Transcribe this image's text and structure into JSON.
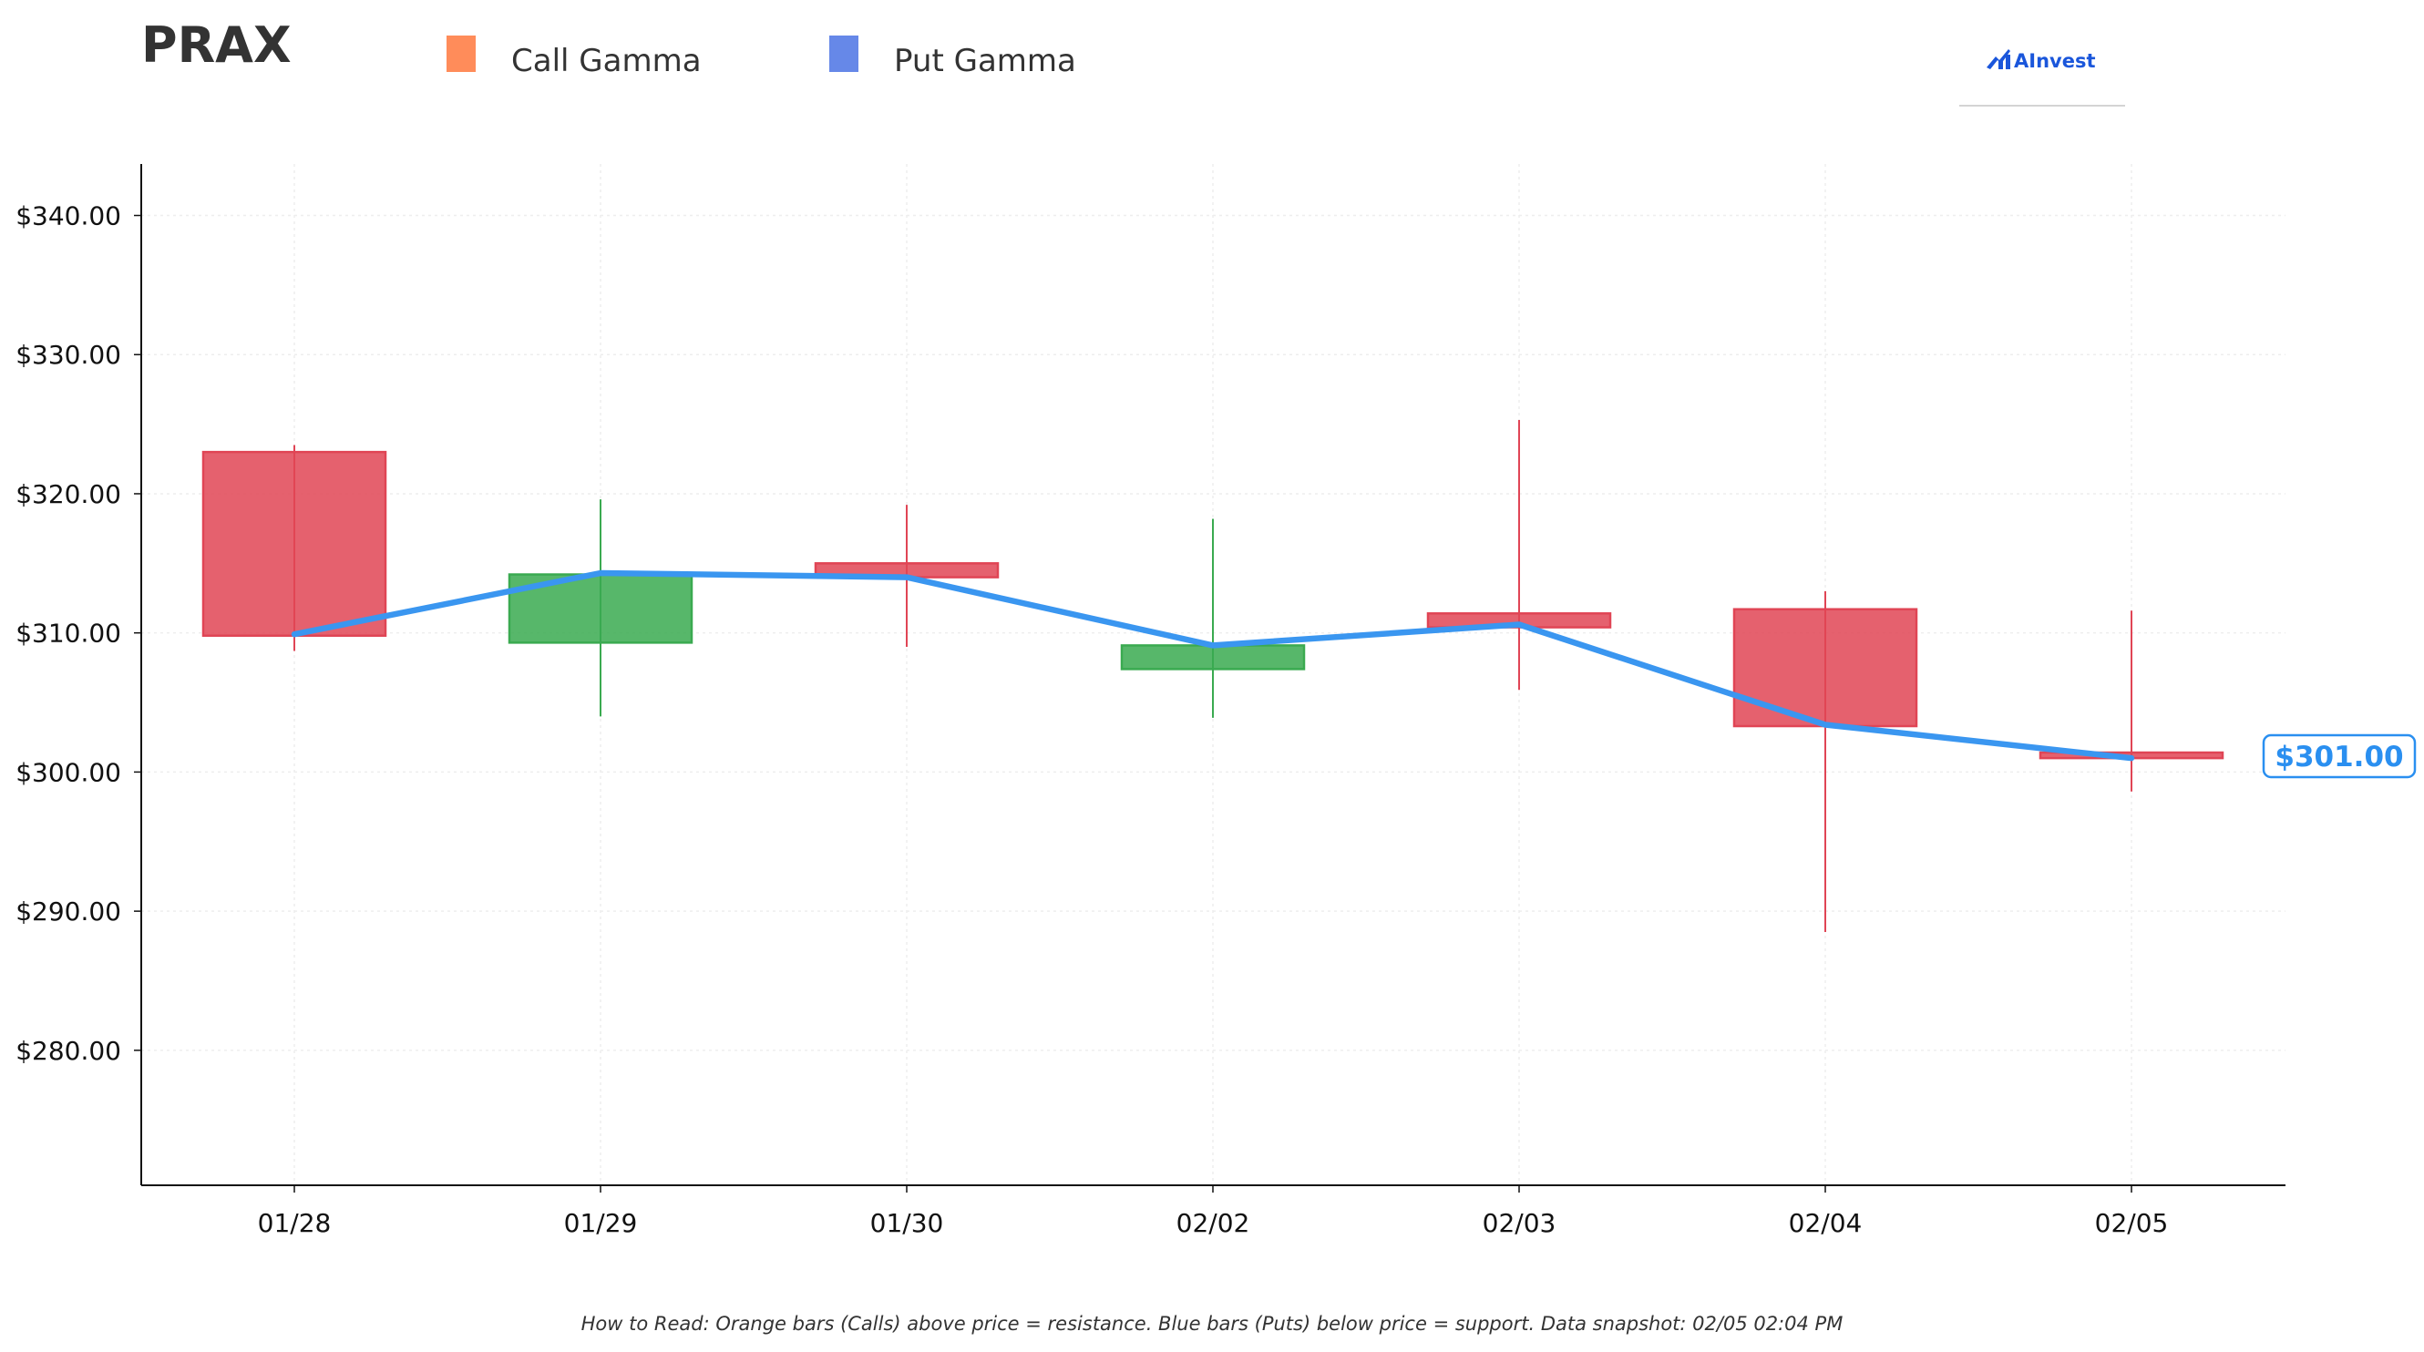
{
  "header": {
    "ticker": "PRAX",
    "legend": [
      {
        "label": "Call Gamma",
        "color": "#ff8c5a",
        "icon": "square-marker"
      },
      {
        "label": "Put Gamma",
        "color": "#6688e8",
        "icon": "square-marker"
      }
    ],
    "logo": {
      "text": "AInvest",
      "icon": "ainvest-logo-icon",
      "color": "#1a56db"
    }
  },
  "footer": {
    "note": "How to Read: Orange bars (Calls) above price = resistance. Blue bars (Puts) below price = support. Data snapshot: 02/05 02:04 PM"
  },
  "chart_data": {
    "type": "candlestick",
    "categories": [
      "01/28",
      "01/29",
      "01/30",
      "02/02",
      "02/03",
      "02/04",
      "02/05"
    ],
    "candles": [
      {
        "date": "01/28",
        "open": 323.0,
        "high": 323.5,
        "low": 308.7,
        "close": 309.8
      },
      {
        "date": "01/29",
        "open": 309.3,
        "high": 319.6,
        "low": 304.0,
        "close": 314.2
      },
      {
        "date": "01/30",
        "open": 315.0,
        "high": 319.2,
        "low": 309.0,
        "close": 314.0
      },
      {
        "date": "02/02",
        "open": 307.4,
        "high": 318.2,
        "low": 303.9,
        "close": 309.1
      },
      {
        "date": "02/03",
        "open": 311.4,
        "high": 325.3,
        "low": 305.9,
        "close": 310.4
      },
      {
        "date": "02/04",
        "open": 311.7,
        "high": 313.0,
        "low": 288.5,
        "close": 303.3
      },
      {
        "date": "02/05",
        "open": 301.4,
        "high": 311.6,
        "low": 298.6,
        "close": 301.0
      }
    ],
    "price_line": [
      309.9,
      314.3,
      314.0,
      309.1,
      310.6,
      303.4,
      301.0
    ],
    "last_price_label": "$301.00",
    "y_ticks": [
      "$280.00",
      "$290.00",
      "$300.00",
      "$310.00",
      "$320.00",
      "$330.00",
      "$340.00"
    ],
    "y_tick_values": [
      280,
      290,
      300,
      310,
      320,
      330,
      340
    ],
    "ylim": [
      270.3,
      343.7
    ],
    "grid": true,
    "colors": {
      "up": "#3aaa50",
      "down": "#e04555",
      "line": "#3a96f0",
      "price_tag": "#2a8ff0"
    }
  }
}
